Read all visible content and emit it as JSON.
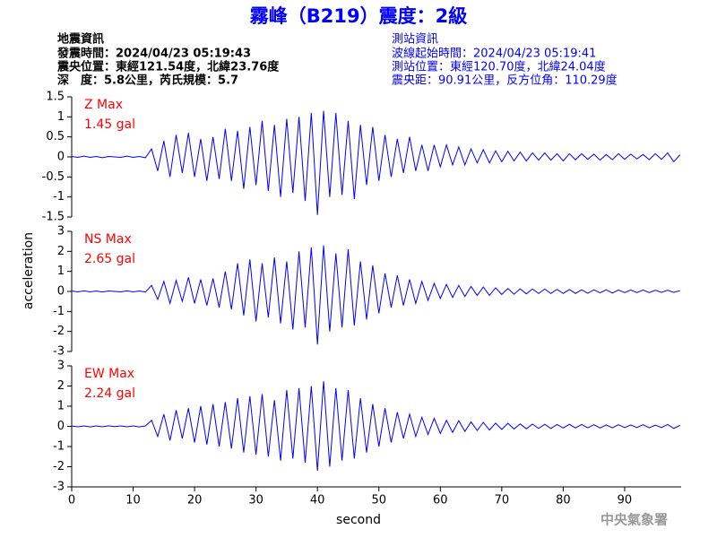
{
  "header": {
    "title": "霧峰（B219）震度：2級",
    "left": [
      "地震資訊",
      "發震時間：2024/04/23 05:19:43",
      "震央位置：東經121.54度，北緯23.76度",
      "深　度：5.8公里，芮氏規模：5.7"
    ],
    "right": [
      "測站資訊",
      "波線起始時間：2024/04/23 05:19:41",
      "測站位置：東經120.70度，北緯24.04度",
      "震央距：90.91公里，反方位角：110.29度"
    ]
  },
  "footer": "中央氣象署",
  "chart_data": [
    {
      "type": "line",
      "annotation": [
        "Z Max",
        "1.45 gal"
      ],
      "ylabel": "acceleration",
      "xlim": [
        0,
        99.2
      ],
      "ylim": [
        -1.5,
        1.5
      ],
      "yticks": [
        -1.5,
        -1,
        -0.5,
        0,
        0.5,
        1,
        1.5
      ],
      "x": [
        0,
        1,
        2,
        3,
        4,
        5,
        6,
        7,
        8,
        9,
        10,
        11,
        12,
        13,
        14,
        15,
        16,
        17,
        18,
        19,
        20,
        21,
        22,
        23,
        24,
        25,
        26,
        27,
        28,
        29,
        30,
        31,
        32,
        33,
        34,
        35,
        36,
        37,
        38,
        39,
        40,
        41,
        42,
        43,
        44,
        45,
        46,
        47,
        48,
        49,
        50,
        51,
        52,
        53,
        54,
        55,
        56,
        57,
        58,
        59,
        60,
        61,
        62,
        63,
        64,
        65,
        66,
        67,
        68,
        69,
        70,
        71,
        72,
        73,
        74,
        75,
        76,
        77,
        78,
        79,
        80,
        81,
        82,
        83,
        84,
        85,
        86,
        87,
        88,
        89,
        90,
        91,
        92,
        93,
        94,
        95,
        96,
        97,
        98,
        99
      ],
      "series": [
        {
          "name": "Z",
          "color": "#0000ff",
          "values": [
            0.01,
            -0.01,
            0.02,
            -0.01,
            0.01,
            -0.02,
            0.01,
            0,
            -0.01,
            0.02,
            -0.01,
            0.01,
            -0.02,
            0.2,
            -0.35,
            0.4,
            -0.5,
            0.55,
            -0.4,
            0.6,
            -0.5,
            0.45,
            -0.6,
            0.5,
            -0.55,
            0.7,
            -0.6,
            0.65,
            -0.8,
            0.75,
            -0.7,
            0.9,
            -0.85,
            0.8,
            -1.0,
            0.95,
            -0.9,
            1.0,
            -1.1,
            1.1,
            -1.45,
            1.15,
            -1.0,
            1.1,
            -0.95,
            0.9,
            -1.05,
            0.8,
            -0.7,
            0.75,
            -0.6,
            0.55,
            -0.5,
            0.45,
            -0.4,
            0.5,
            -0.35,
            0.3,
            -0.35,
            0.3,
            -0.25,
            0.3,
            -0.2,
            0.25,
            -0.2,
            0.2,
            -0.15,
            0.18,
            -0.15,
            0.15,
            -0.12,
            0.14,
            -0.1,
            0.12,
            -0.1,
            0.1,
            -0.08,
            0.1,
            -0.08,
            0.08,
            -0.1,
            0.08,
            -0.07,
            0.08,
            -0.06,
            0.07,
            -0.08,
            0.06,
            -0.07,
            0.08,
            -0.06,
            0.07,
            -0.05,
            0.06,
            -0.07,
            0.08,
            -0.06,
            0.1,
            -0.12,
            0.05
          ]
        }
      ]
    },
    {
      "type": "line",
      "annotation": [
        "NS Max",
        "2.65 gal"
      ],
      "xlim": [
        0,
        99.2
      ],
      "ylim": [
        -3,
        3
      ],
      "yticks": [
        -3,
        -2,
        -1,
        0,
        1,
        2,
        3
      ],
      "x": [
        0,
        1,
        2,
        3,
        4,
        5,
        6,
        7,
        8,
        9,
        10,
        11,
        12,
        13,
        14,
        15,
        16,
        17,
        18,
        19,
        20,
        21,
        22,
        23,
        24,
        25,
        26,
        27,
        28,
        29,
        30,
        31,
        32,
        33,
        34,
        35,
        36,
        37,
        38,
        39,
        40,
        41,
        42,
        43,
        44,
        45,
        46,
        47,
        48,
        49,
        50,
        51,
        52,
        53,
        54,
        55,
        56,
        57,
        58,
        59,
        60,
        61,
        62,
        63,
        64,
        65,
        66,
        67,
        68,
        69,
        70,
        71,
        72,
        73,
        74,
        75,
        76,
        77,
        78,
        79,
        80,
        81,
        82,
        83,
        84,
        85,
        86,
        87,
        88,
        89,
        90,
        91,
        92,
        93,
        94,
        95,
        96,
        97,
        98,
        99
      ],
      "series": [
        {
          "name": "NS",
          "color": "#0000ff",
          "values": [
            0.02,
            -0.02,
            0.03,
            -0.02,
            0.02,
            -0.03,
            0.02,
            0,
            -0.02,
            0.03,
            -0.02,
            0.02,
            -0.03,
            0.3,
            -0.4,
            0.5,
            -0.6,
            0.55,
            -0.5,
            0.7,
            -0.6,
            0.6,
            -0.7,
            0.65,
            -0.8,
            1.0,
            -0.9,
            1.4,
            -1.2,
            1.6,
            -1.5,
            1.4,
            -1.3,
            1.7,
            -1.6,
            1.5,
            -1.9,
            2.0,
            -1.8,
            2.2,
            -2.65,
            2.3,
            -2.0,
            1.9,
            -1.8,
            2.1,
            -1.7,
            1.5,
            -1.4,
            1.3,
            -1.1,
            0.9,
            -0.8,
            0.8,
            -0.7,
            0.6,
            -0.6,
            0.5,
            -0.45,
            0.4,
            -0.35,
            0.35,
            -0.3,
            0.3,
            -0.25,
            0.25,
            -0.2,
            0.22,
            -0.2,
            0.18,
            -0.15,
            0.15,
            -0.14,
            0.13,
            -0.12,
            0.12,
            -0.1,
            0.12,
            -0.1,
            0.1,
            -0.1,
            0.09,
            -0.1,
            0.08,
            -0.09,
            0.08,
            -0.07,
            0.08,
            -0.08,
            0.07,
            -0.06,
            0.07,
            -0.06,
            0.07,
            -0.06,
            0.06,
            -0.05,
            0.06,
            -0.05,
            0.04
          ]
        }
      ]
    },
    {
      "type": "line",
      "annotation": [
        "EW Max",
        "2.24 gal"
      ],
      "xlabel": "second",
      "xlim": [
        0,
        99.2
      ],
      "xticks": [
        0,
        10,
        20,
        30,
        40,
        50,
        60,
        70,
        80,
        90
      ],
      "ylim": [
        -3,
        3
      ],
      "yticks": [
        -3,
        -2,
        -1,
        0,
        1,
        2,
        3
      ],
      "x": [
        0,
        1,
        2,
        3,
        4,
        5,
        6,
        7,
        8,
        9,
        10,
        11,
        12,
        13,
        14,
        15,
        16,
        17,
        18,
        19,
        20,
        21,
        22,
        23,
        24,
        25,
        26,
        27,
        28,
        29,
        30,
        31,
        32,
        33,
        34,
        35,
        36,
        37,
        38,
        39,
        40,
        41,
        42,
        43,
        44,
        45,
        46,
        47,
        48,
        49,
        50,
        51,
        52,
        53,
        54,
        55,
        56,
        57,
        58,
        59,
        60,
        61,
        62,
        63,
        64,
        65,
        66,
        67,
        68,
        69,
        70,
        71,
        72,
        73,
        74,
        75,
        76,
        77,
        78,
        79,
        80,
        81,
        82,
        83,
        84,
        85,
        86,
        87,
        88,
        89,
        90,
        91,
        92,
        93,
        94,
        95,
        96,
        97,
        98,
        99
      ],
      "series": [
        {
          "name": "EW",
          "color": "#0000ff",
          "values": [
            0.02,
            -0.02,
            0.02,
            -0.03,
            0.02,
            -0.02,
            0.03,
            -0.01,
            0.02,
            -0.02,
            0.02,
            -0.03,
            0.02,
            0.3,
            -0.5,
            0.6,
            -0.7,
            0.8,
            -0.6,
            0.9,
            -0.8,
            1.0,
            -0.9,
            1.1,
            -1.0,
            1.2,
            -1.1,
            1.4,
            -1.3,
            1.5,
            -1.4,
            1.6,
            -1.5,
            1.3,
            -1.7,
            1.8,
            -1.6,
            1.9,
            -1.8,
            2.0,
            -2.2,
            2.24,
            -2.0,
            1.9,
            -1.7,
            1.8,
            -1.6,
            1.4,
            -1.3,
            1.1,
            -1.0,
            0.9,
            -0.8,
            0.7,
            -0.6,
            0.6,
            -0.5,
            0.45,
            -0.4,
            0.4,
            -0.35,
            0.3,
            -0.3,
            0.28,
            -0.25,
            0.22,
            -0.2,
            0.2,
            -0.18,
            0.16,
            -0.15,
            0.15,
            -0.13,
            0.12,
            -0.12,
            0.11,
            -0.1,
            0.1,
            -0.1,
            0.09,
            -0.08,
            0.1,
            -0.08,
            0.09,
            -0.07,
            0.08,
            -0.08,
            0.07,
            -0.07,
            0.08,
            -0.06,
            0.07,
            -0.06,
            0.08,
            -0.07,
            0.06,
            -0.06,
            0.09,
            -0.1,
            0.05
          ]
        }
      ]
    }
  ]
}
